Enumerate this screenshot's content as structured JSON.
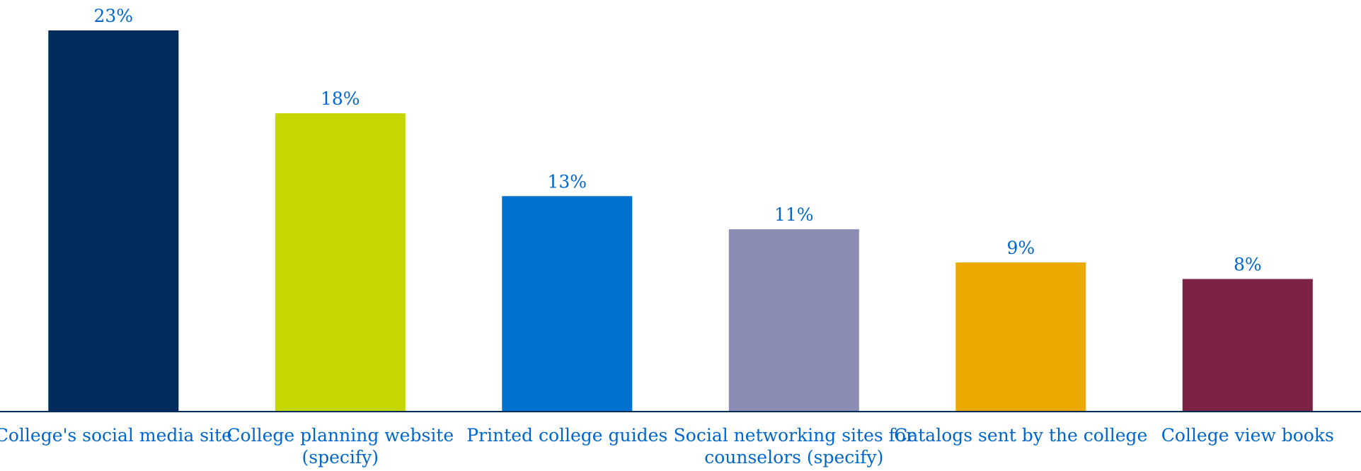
{
  "chart_data": {
    "type": "bar",
    "categories": [
      [
        "College's social media site"
      ],
      [
        "College planning website",
        "(specify)"
      ],
      [
        "Printed college guides"
      ],
      [
        "Social networking sites for",
        "counselors (specify)"
      ],
      [
        "Catalogs sent by the college"
      ],
      [
        "College view books"
      ]
    ],
    "values": [
      23,
      18,
      13,
      11,
      9,
      8
    ],
    "value_labels": [
      "23%",
      "18%",
      "13%",
      "11%",
      "9%",
      "8%"
    ],
    "ylim": [
      0,
      23
    ],
    "grid": false,
    "legend": "none",
    "title": "",
    "xlabel": "",
    "ylabel": "",
    "colors": [
      "#002d5c",
      "#c4d700",
      "#0071ce",
      "#8a8cb3",
      "#eba900",
      "#7b2245"
    ],
    "label_color": "#0066cc",
    "axis_color": "#002d5c"
  }
}
